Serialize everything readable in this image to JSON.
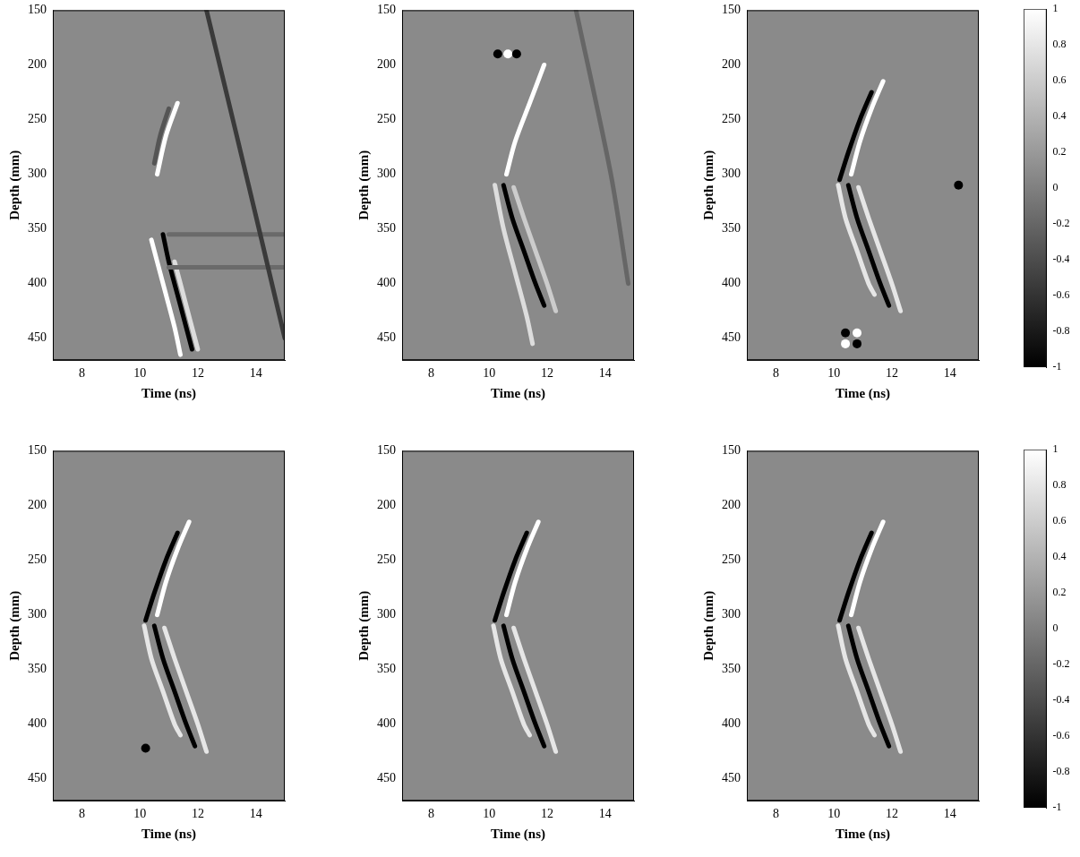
{
  "chart_data": [
    {
      "type": "scatter",
      "x_label": "Time (ns)",
      "y_label": "Depth (mm)",
      "xlim": [
        7,
        15
      ],
      "xticks": [
        8,
        10,
        12,
        14
      ],
      "ylim": [
        150,
        470
      ],
      "yticks": [
        150,
        200,
        250,
        300,
        350,
        400,
        450
      ],
      "grid": false,
      "series": [
        {
          "type": "line",
          "color": "#3a3a3a",
          "marker": "none",
          "line_style": "solid",
          "x": [
            12.3,
            13.3,
            14.2,
            15
          ],
          "values": [
            150,
            260,
            360,
            450
          ]
        },
        {
          "type": "line",
          "color": "#6a6a6a",
          "marker": "none",
          "line_style": "solid",
          "x": [
            11,
            15
          ],
          "values": [
            355,
            355
          ]
        },
        {
          "type": "line",
          "color": "#6a6a6a",
          "marker": "none",
          "line_style": "solid",
          "x": [
            11,
            15
          ],
          "values": [
            385,
            385
          ]
        },
        {
          "type": "line",
          "color": "#555555",
          "marker": "none",
          "line_style": "solid",
          "x": [
            11.0,
            10.7,
            10.5
          ],
          "values": [
            240,
            265,
            290
          ]
        },
        {
          "type": "line",
          "color": "#ffffff",
          "marker": "none",
          "line_style": "solid",
          "x": [
            11.3,
            10.9,
            10.6
          ],
          "values": [
            235,
            265,
            300
          ]
        },
        {
          "type": "line",
          "color": "#ffffff",
          "marker": "none",
          "line_style": "solid",
          "x": [
            10.4,
            10.8,
            11.2,
            11.4
          ],
          "values": [
            360,
            400,
            440,
            465
          ]
        },
        {
          "type": "line",
          "color": "#000000",
          "marker": "none",
          "line_style": "solid",
          "x": [
            10.8,
            11.0,
            11.4,
            11.8
          ],
          "values": [
            355,
            380,
            420,
            460
          ]
        },
        {
          "type": "line",
          "color": "#dddddd",
          "marker": "none",
          "line_style": "solid",
          "x": [
            11.2,
            11.6,
            12.0
          ],
          "values": [
            380,
            420,
            460
          ]
        }
      ]
    },
    {
      "type": "scatter",
      "x_label": "Time (ns)",
      "y_label": "Depth (mm)",
      "xlim": [
        7,
        15
      ],
      "xticks": [
        8,
        10,
        12,
        14
      ],
      "ylim": [
        150,
        470
      ],
      "yticks": [
        150,
        200,
        250,
        300,
        350,
        400,
        450
      ],
      "grid": false,
      "series": [
        {
          "type": "line",
          "color": "#666666",
          "marker": "none",
          "line_style": "solid",
          "x": [
            13.0,
            14.2,
            14.8
          ],
          "values": [
            150,
            300,
            400
          ]
        },
        {
          "type": "line",
          "color": "#ffffff",
          "marker": "none",
          "line_style": "solid",
          "x": [
            11.9,
            11.4,
            10.9,
            10.6
          ],
          "values": [
            200,
            235,
            270,
            300
          ]
        },
        {
          "type": "line",
          "color": "#dddddd",
          "marker": "none",
          "line_style": "solid",
          "x": [
            10.2,
            10.5,
            10.9,
            11.3,
            11.5
          ],
          "values": [
            310,
            350,
            390,
            430,
            455
          ]
        },
        {
          "type": "line",
          "color": "#000000",
          "marker": "none",
          "line_style": "solid",
          "x": [
            10.5,
            10.8,
            11.2,
            11.6,
            11.9
          ],
          "values": [
            310,
            340,
            370,
            400,
            420
          ]
        },
        {
          "type": "line",
          "color": "#cccccc",
          "marker": "none",
          "line_style": "solid",
          "x": [
            10.85,
            11.2,
            11.6,
            12.0,
            12.3
          ],
          "values": [
            312,
            340,
            370,
            400,
            425
          ]
        },
        {
          "type": "scatter",
          "color": "#000000",
          "marker": "circle",
          "x": [
            10.3,
            10.95
          ],
          "values": [
            190,
            190
          ]
        },
        {
          "type": "scatter",
          "color": "#ffffff",
          "marker": "circle",
          "x": [
            10.65
          ],
          "values": [
            190
          ]
        }
      ]
    },
    {
      "type": "scatter",
      "x_label": "Time (ns)",
      "y_label": "Depth (mm)",
      "xlim": [
        7,
        15
      ],
      "xticks": [
        8,
        10,
        12,
        14
      ],
      "ylim": [
        150,
        470
      ],
      "yticks": [
        150,
        200,
        250,
        300,
        350,
        400,
        450
      ],
      "grid": false,
      "colorbar": {
        "range": [
          -1,
          1
        ],
        "ticks": [
          -1,
          -0.8,
          -0.6,
          -0.4,
          -0.2,
          0,
          0.2,
          0.4,
          0.6,
          0.8,
          1
        ],
        "colors": [
          "#000000",
          "#ffffff"
        ]
      },
      "series": [
        {
          "type": "line",
          "color": "#000000",
          "marker": "none",
          "line_style": "solid",
          "x": [
            11.3,
            10.9,
            10.5,
            10.2
          ],
          "values": [
            225,
            250,
            280,
            305
          ]
        },
        {
          "type": "line",
          "color": "#ffffff",
          "marker": "none",
          "line_style": "solid",
          "x": [
            11.7,
            11.3,
            10.9,
            10.6
          ],
          "values": [
            215,
            240,
            270,
            300
          ]
        },
        {
          "type": "line",
          "color": "#e6e6e6",
          "marker": "none",
          "line_style": "solid",
          "x": [
            10.15,
            10.4,
            10.8,
            11.2,
            11.4
          ],
          "values": [
            310,
            340,
            370,
            400,
            410
          ]
        },
        {
          "type": "line",
          "color": "#000000",
          "marker": "none",
          "line_style": "solid",
          "x": [
            10.5,
            10.8,
            11.2,
            11.6,
            11.9
          ],
          "values": [
            310,
            340,
            370,
            400,
            420
          ]
        },
        {
          "type": "line",
          "color": "#e6e6e6",
          "marker": "none",
          "line_style": "solid",
          "x": [
            10.85,
            11.2,
            11.6,
            12.0,
            12.3
          ],
          "values": [
            312,
            340,
            370,
            400,
            425
          ]
        },
        {
          "type": "scatter",
          "color": "#000000",
          "marker": "circle",
          "x": [
            10.4,
            10.8,
            14.3
          ],
          "values": [
            445,
            455,
            310
          ]
        },
        {
          "type": "scatter",
          "color": "#ffffff",
          "marker": "circle",
          "x": [
            10.8,
            10.4
          ],
          "values": [
            445,
            455
          ]
        }
      ]
    },
    {
      "type": "scatter",
      "x_label": "Time (ns)",
      "y_label": "Depth (mm)",
      "xlim": [
        7,
        15
      ],
      "xticks": [
        8,
        10,
        12,
        14
      ],
      "ylim": [
        150,
        470
      ],
      "yticks": [
        150,
        200,
        250,
        300,
        350,
        400,
        450
      ],
      "grid": false,
      "series": [
        {
          "type": "line",
          "color": "#000000",
          "marker": "none",
          "line_style": "solid",
          "x": [
            11.3,
            10.9,
            10.5,
            10.2
          ],
          "values": [
            225,
            250,
            280,
            305
          ]
        },
        {
          "type": "line",
          "color": "#ffffff",
          "marker": "none",
          "line_style": "solid",
          "x": [
            11.7,
            11.3,
            10.9,
            10.6
          ],
          "values": [
            215,
            240,
            270,
            300
          ]
        },
        {
          "type": "line",
          "color": "#e6e6e6",
          "marker": "none",
          "line_style": "solid",
          "x": [
            10.15,
            10.4,
            10.8,
            11.2,
            11.4
          ],
          "values": [
            310,
            340,
            370,
            400,
            410
          ]
        },
        {
          "type": "line",
          "color": "#000000",
          "marker": "none",
          "line_style": "solid",
          "x": [
            10.5,
            10.8,
            11.2,
            11.6,
            11.9
          ],
          "values": [
            310,
            340,
            370,
            400,
            420
          ]
        },
        {
          "type": "line",
          "color": "#e6e6e6",
          "marker": "none",
          "line_style": "solid",
          "x": [
            10.85,
            11.2,
            11.6,
            12.0,
            12.3
          ],
          "values": [
            312,
            340,
            370,
            400,
            425
          ]
        },
        {
          "type": "scatter",
          "color": "#000000",
          "marker": "circle",
          "x": [
            10.2
          ],
          "values": [
            422
          ]
        }
      ]
    },
    {
      "type": "scatter",
      "x_label": "Time (ns)",
      "y_label": "Depth (mm)",
      "xlim": [
        7,
        15
      ],
      "xticks": [
        8,
        10,
        12,
        14
      ],
      "ylim": [
        150,
        470
      ],
      "yticks": [
        150,
        200,
        250,
        300,
        350,
        400,
        450
      ],
      "grid": false,
      "series": [
        {
          "type": "line",
          "color": "#000000",
          "marker": "none",
          "line_style": "solid",
          "x": [
            11.3,
            10.9,
            10.5,
            10.2
          ],
          "values": [
            225,
            250,
            280,
            305
          ]
        },
        {
          "type": "line",
          "color": "#ffffff",
          "marker": "none",
          "line_style": "solid",
          "x": [
            11.7,
            11.3,
            10.9,
            10.6
          ],
          "values": [
            215,
            240,
            270,
            300
          ]
        },
        {
          "type": "line",
          "color": "#e6e6e6",
          "marker": "none",
          "line_style": "solid",
          "x": [
            10.15,
            10.4,
            10.8,
            11.2,
            11.4
          ],
          "values": [
            310,
            340,
            370,
            400,
            410
          ]
        },
        {
          "type": "line",
          "color": "#000000",
          "marker": "none",
          "line_style": "solid",
          "x": [
            10.5,
            10.8,
            11.2,
            11.6,
            11.9
          ],
          "values": [
            310,
            340,
            370,
            400,
            420
          ]
        },
        {
          "type": "line",
          "color": "#e6e6e6",
          "marker": "none",
          "line_style": "solid",
          "x": [
            10.85,
            11.2,
            11.6,
            12.0,
            12.3
          ],
          "values": [
            312,
            340,
            370,
            400,
            425
          ]
        }
      ]
    },
    {
      "type": "scatter",
      "x_label": "Time (ns)",
      "y_label": "Depth (mm)",
      "xlim": [
        7,
        15
      ],
      "xticks": [
        8,
        10,
        12,
        14
      ],
      "ylim": [
        150,
        470
      ],
      "yticks": [
        150,
        200,
        250,
        300,
        350,
        400,
        450
      ],
      "grid": false,
      "colorbar": {
        "range": [
          -1,
          1
        ],
        "ticks": [
          -1,
          -0.8,
          -0.6,
          -0.4,
          -0.2,
          0,
          0.2,
          0.4,
          0.6,
          0.8,
          1
        ],
        "colors": [
          "#000000",
          "#ffffff"
        ]
      },
      "series": [
        {
          "type": "line",
          "color": "#000000",
          "marker": "none",
          "line_style": "solid",
          "x": [
            11.3,
            10.9,
            10.5,
            10.2
          ],
          "values": [
            225,
            250,
            280,
            305
          ]
        },
        {
          "type": "line",
          "color": "#ffffff",
          "marker": "none",
          "line_style": "solid",
          "x": [
            11.7,
            11.3,
            10.9,
            10.6
          ],
          "values": [
            215,
            240,
            270,
            300
          ]
        },
        {
          "type": "line",
          "color": "#e6e6e6",
          "marker": "none",
          "line_style": "solid",
          "x": [
            10.15,
            10.4,
            10.8,
            11.2,
            11.4
          ],
          "values": [
            310,
            340,
            370,
            400,
            410
          ]
        },
        {
          "type": "line",
          "color": "#000000",
          "marker": "none",
          "line_style": "solid",
          "x": [
            10.5,
            10.8,
            11.2,
            11.6,
            11.9
          ],
          "values": [
            310,
            340,
            370,
            400,
            420
          ]
        },
        {
          "type": "line",
          "color": "#e6e6e6",
          "marker": "none",
          "line_style": "solid",
          "x": [
            10.85,
            11.2,
            11.6,
            12.0,
            12.3
          ],
          "values": [
            312,
            340,
            370,
            400,
            425
          ]
        }
      ]
    }
  ]
}
